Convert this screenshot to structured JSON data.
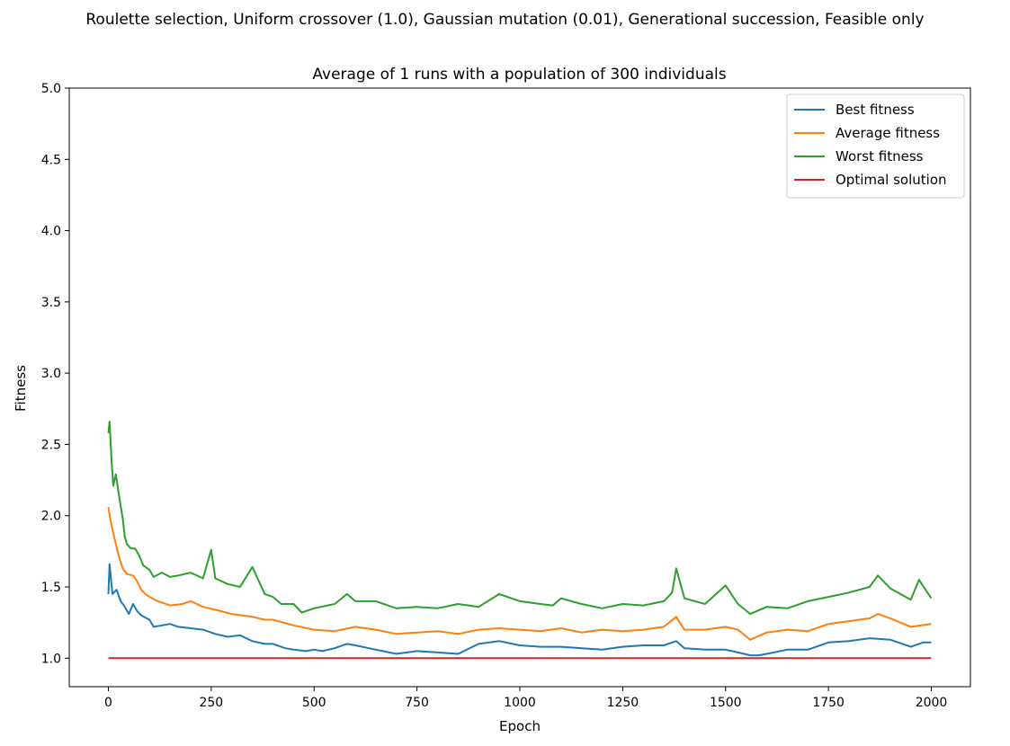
{
  "figure": {
    "suptitle": "Roulette selection, Uniform crossover (1.0), Gaussian mutation (0.01), Generational succession, Feasible only"
  },
  "chart_data": {
    "type": "line",
    "title": "Average of 1 runs with a population of 300 individuals",
    "xlabel": "Epoch",
    "ylabel": "Fitness",
    "xlim": [
      -95,
      2095
    ],
    "ylim": [
      0.8,
      5.0
    ],
    "xticks": [
      0,
      250,
      500,
      750,
      1000,
      1250,
      1500,
      1750,
      2000
    ],
    "yticks": [
      1.0,
      1.5,
      2.0,
      2.5,
      3.0,
      3.5,
      4.0,
      4.5,
      5.0
    ],
    "grid": false,
    "legend_position": "top-right",
    "series": [
      {
        "name": "Best fitness",
        "color": "#1f77b4",
        "x": [
          0,
          3,
          10,
          20,
          30,
          40,
          50,
          60,
          70,
          80,
          100,
          110,
          130,
          150,
          170,
          200,
          230,
          260,
          290,
          320,
          350,
          380,
          400,
          430,
          450,
          480,
          500,
          520,
          550,
          580,
          600,
          650,
          700,
          750,
          800,
          850,
          900,
          950,
          1000,
          1050,
          1100,
          1150,
          1200,
          1250,
          1300,
          1350,
          1380,
          1400,
          1450,
          1500,
          1530,
          1560,
          1580,
          1600,
          1650,
          1700,
          1750,
          1800,
          1850,
          1900,
          1950,
          1980,
          2000
        ],
        "values": [
          1.45,
          1.66,
          1.45,
          1.48,
          1.4,
          1.36,
          1.31,
          1.38,
          1.33,
          1.3,
          1.27,
          1.22,
          1.23,
          1.24,
          1.22,
          1.21,
          1.2,
          1.17,
          1.15,
          1.16,
          1.12,
          1.1,
          1.1,
          1.07,
          1.06,
          1.05,
          1.06,
          1.05,
          1.07,
          1.1,
          1.09,
          1.06,
          1.03,
          1.05,
          1.04,
          1.03,
          1.1,
          1.12,
          1.09,
          1.08,
          1.08,
          1.07,
          1.06,
          1.08,
          1.09,
          1.09,
          1.12,
          1.07,
          1.06,
          1.06,
          1.04,
          1.02,
          1.02,
          1.03,
          1.06,
          1.06,
          1.11,
          1.12,
          1.14,
          1.13,
          1.08,
          1.11,
          1.11
        ]
      },
      {
        "name": "Average fitness",
        "color": "#ff7f0e",
        "x": [
          0,
          5,
          15,
          25,
          35,
          45,
          60,
          70,
          80,
          90,
          100,
          120,
          150,
          180,
          200,
          230,
          260,
          300,
          350,
          380,
          400,
          450,
          500,
          550,
          600,
          650,
          700,
          750,
          800,
          850,
          900,
          950,
          1000,
          1050,
          1100,
          1150,
          1200,
          1250,
          1300,
          1350,
          1380,
          1400,
          1450,
          1500,
          1530,
          1560,
          1600,
          1650,
          1700,
          1750,
          1800,
          1850,
          1870,
          1900,
          1950,
          2000
        ],
        "values": [
          2.06,
          1.97,
          1.84,
          1.72,
          1.63,
          1.59,
          1.58,
          1.54,
          1.48,
          1.45,
          1.43,
          1.4,
          1.37,
          1.38,
          1.4,
          1.36,
          1.34,
          1.31,
          1.29,
          1.27,
          1.27,
          1.23,
          1.2,
          1.19,
          1.22,
          1.2,
          1.17,
          1.18,
          1.19,
          1.17,
          1.2,
          1.21,
          1.2,
          1.19,
          1.21,
          1.18,
          1.2,
          1.19,
          1.2,
          1.22,
          1.29,
          1.2,
          1.2,
          1.22,
          1.2,
          1.13,
          1.18,
          1.2,
          1.19,
          1.24,
          1.26,
          1.28,
          1.31,
          1.28,
          1.22,
          1.24
        ]
      },
      {
        "name": "Worst fitness",
        "color": "#2ca02c",
        "x": [
          0,
          3,
          8,
          12,
          18,
          22,
          28,
          35,
          40,
          45,
          55,
          65,
          75,
          85,
          100,
          110,
          130,
          150,
          170,
          200,
          230,
          250,
          260,
          290,
          320,
          350,
          380,
          400,
          420,
          450,
          470,
          500,
          550,
          580,
          600,
          650,
          700,
          750,
          800,
          850,
          900,
          950,
          1000,
          1050,
          1080,
          1100,
          1150,
          1200,
          1250,
          1300,
          1350,
          1370,
          1380,
          1400,
          1450,
          1500,
          1530,
          1560,
          1600,
          1650,
          1700,
          1750,
          1800,
          1850,
          1870,
          1900,
          1950,
          1970,
          2000
        ],
        "values": [
          2.58,
          2.66,
          2.38,
          2.21,
          2.29,
          2.22,
          2.1,
          1.98,
          1.85,
          1.8,
          1.77,
          1.77,
          1.72,
          1.65,
          1.62,
          1.57,
          1.6,
          1.57,
          1.58,
          1.6,
          1.56,
          1.76,
          1.56,
          1.52,
          1.5,
          1.64,
          1.45,
          1.43,
          1.38,
          1.38,
          1.32,
          1.35,
          1.38,
          1.45,
          1.4,
          1.4,
          1.35,
          1.36,
          1.35,
          1.38,
          1.36,
          1.45,
          1.4,
          1.38,
          1.37,
          1.42,
          1.38,
          1.35,
          1.38,
          1.37,
          1.4,
          1.46,
          1.63,
          1.42,
          1.38,
          1.51,
          1.38,
          1.31,
          1.36,
          1.35,
          1.4,
          1.43,
          1.46,
          1.5,
          1.58,
          1.49,
          1.41,
          1.55,
          1.42
        ]
      },
      {
        "name": "Optimal solution",
        "color": "#d62728",
        "x": [
          0,
          2000
        ],
        "values": [
          1.0,
          1.0
        ]
      }
    ]
  }
}
